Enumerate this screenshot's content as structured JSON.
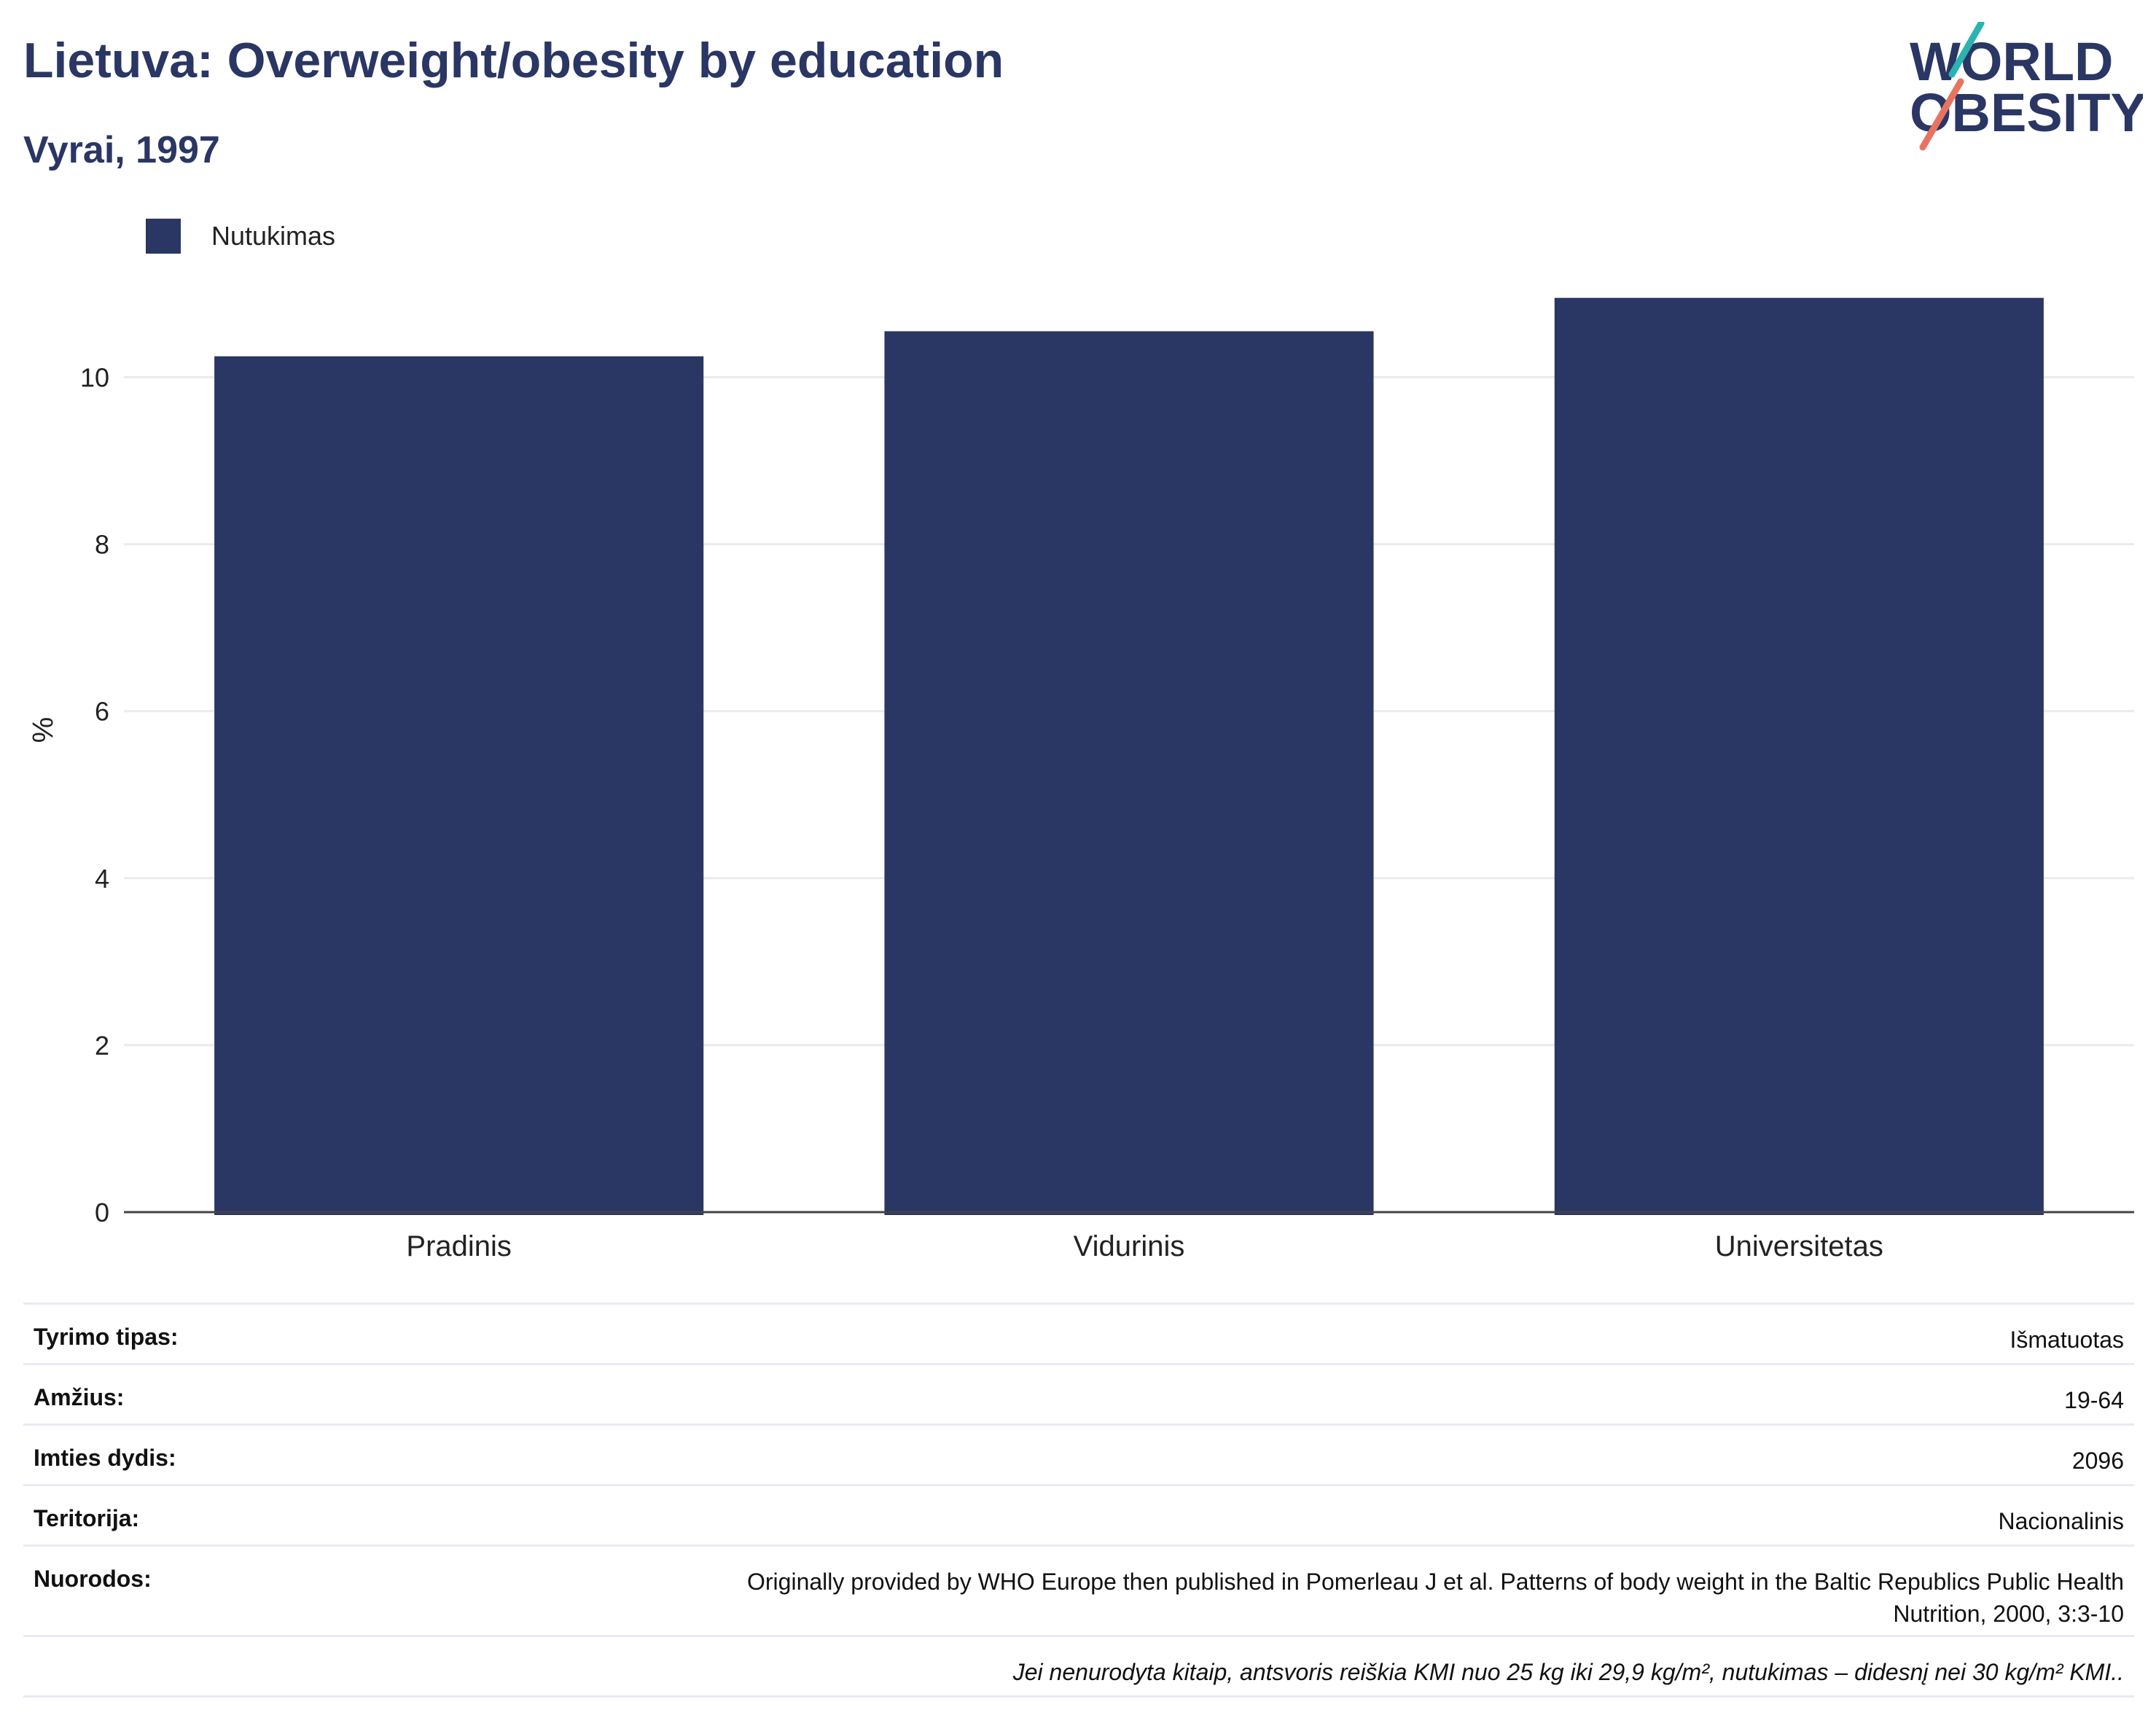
{
  "header": {
    "title": "Lietuva: Overweight/obesity by education",
    "subtitle": "Vyrai, 1997"
  },
  "logo": {
    "line1": "WORLD",
    "line2": "OBESITY",
    "accent_teal": "#2ab3b1",
    "accent_coral": "#e8735f"
  },
  "legend": {
    "items": [
      {
        "label": "Nutukimas",
        "color": "#2a3663"
      }
    ]
  },
  "chart_data": {
    "type": "bar",
    "title": "Lietuva: Overweight/obesity by education",
    "subtitle": "Vyrai, 1997",
    "categories": [
      "Pradinis",
      "Vidurinis",
      "Universitetas"
    ],
    "series": [
      {
        "name": "Nutukimas",
        "values": [
          10.25,
          10.55,
          10.95
        ],
        "color": "#2a3663"
      }
    ],
    "xlabel": "",
    "ylabel": "%",
    "ylim": [
      0,
      11.2
    ],
    "yticks": [
      0,
      2,
      4,
      6,
      8,
      10
    ],
    "grid": true,
    "legend_position": "top-left"
  },
  "info_table": [
    {
      "key": "Tyrimo tipas:",
      "value": "Išmatuotas"
    },
    {
      "key": "Amžius:",
      "value": "19-64"
    },
    {
      "key": "Imties dydis:",
      "value": "2096"
    },
    {
      "key": "Teritorija:",
      "value": "Nacionalinis"
    },
    {
      "key": "Nuorodos:",
      "value_line1": "Originally provided by WHO Europe then published in Pomerleau J et al. Patterns of body weight in the Baltic Republics Public Health",
      "value_line2": "Nutrition, 2000, 3:3-10"
    }
  ],
  "footnote": "Jei nenurodyta kitaip, antsvoris reiškia KMI nuo 25 kg iki 29,9 kg/m², nutukimas – didesnį nei 30 kg/m² KMI.."
}
